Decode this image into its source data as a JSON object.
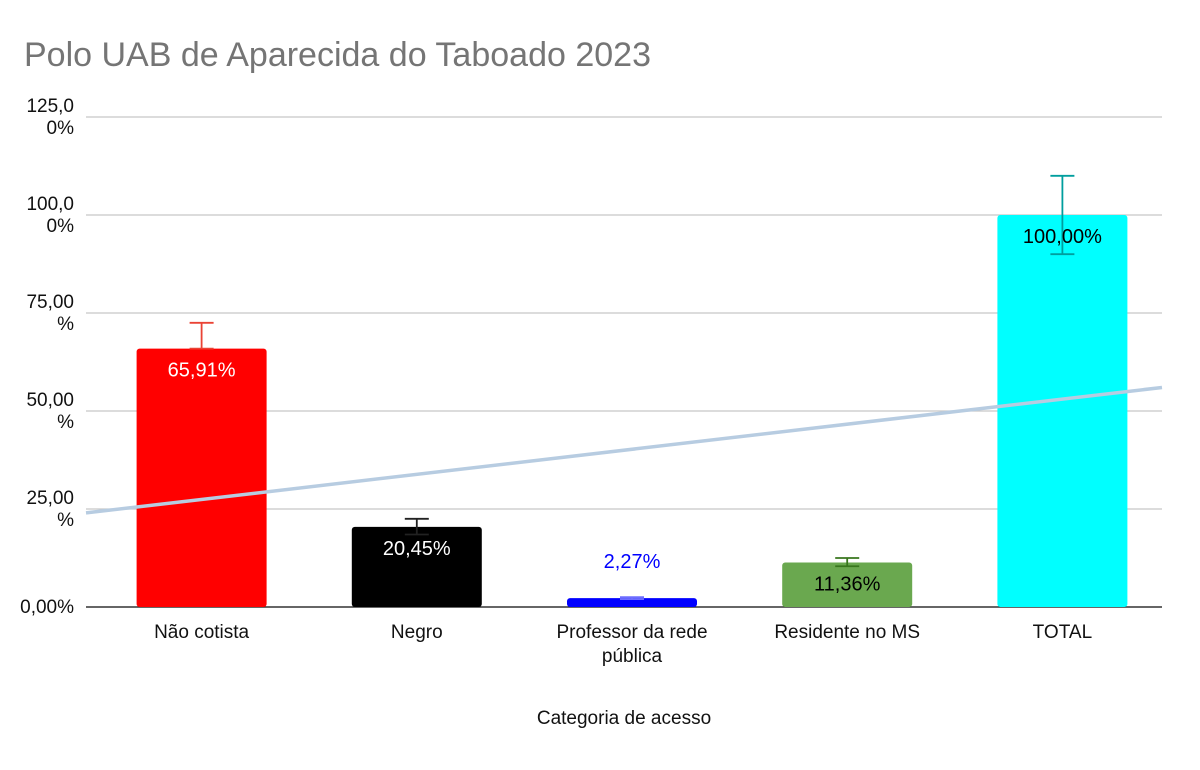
{
  "chart_data": {
    "type": "bar",
    "title": "Polo UAB de Aparecida do Taboado 2023",
    "xlabel": "Categoria de acesso",
    "ylabel": "",
    "ylim": [
      0,
      125
    ],
    "yticks": [
      {
        "value": 0,
        "lines": [
          "0,00%"
        ]
      },
      {
        "value": 25,
        "lines": [
          "25,00",
          "%"
        ]
      },
      {
        "value": 50,
        "lines": [
          "50,00",
          "%"
        ]
      },
      {
        "value": 75,
        "lines": [
          "75,00",
          "%"
        ]
      },
      {
        "value": 100,
        "lines": [
          "100,0",
          "0%"
        ]
      },
      {
        "value": 125,
        "lines": [
          "125,0",
          "0%"
        ]
      }
    ],
    "grid": true,
    "categories": [
      [
        "Não cotista"
      ],
      [
        "Negro"
      ],
      [
        "Professor da rede",
        "pública"
      ],
      [
        "Residente no MS"
      ],
      [
        "TOTAL"
      ]
    ],
    "values": [
      65.91,
      20.45,
      2.27,
      11.36,
      100.0
    ],
    "data_labels": [
      "65,91%",
      "20,45%",
      "2,27%",
      "11,36%",
      "100,00%"
    ],
    "bar_colors": [
      "#ff0000",
      "#000000",
      "#0000ff",
      "#6aa84f",
      "#00ffff"
    ],
    "label_colors": [
      "#ffffff",
      "#ffffff",
      "#0000ff",
      "#000000",
      "#000000"
    ],
    "label_position": [
      "inside",
      "inside",
      "above",
      "inside",
      "inside"
    ],
    "error_bars": [
      {
        "low": 65.91,
        "high": 72.5,
        "color": "#ea4335"
      },
      {
        "low": 18.5,
        "high": 22.5,
        "color": "#222222"
      },
      {
        "low": 2.0,
        "high": 2.5,
        "color": "#6d6dff"
      },
      {
        "low": 10.4,
        "high": 12.5,
        "color": "#38761d"
      },
      {
        "low": 90.0,
        "high": 110.0,
        "color": "#009e9e"
      }
    ],
    "trendline": {
      "type": "linear",
      "color": "#b7cce1",
      "start": 24.0,
      "end": 56.0
    }
  }
}
